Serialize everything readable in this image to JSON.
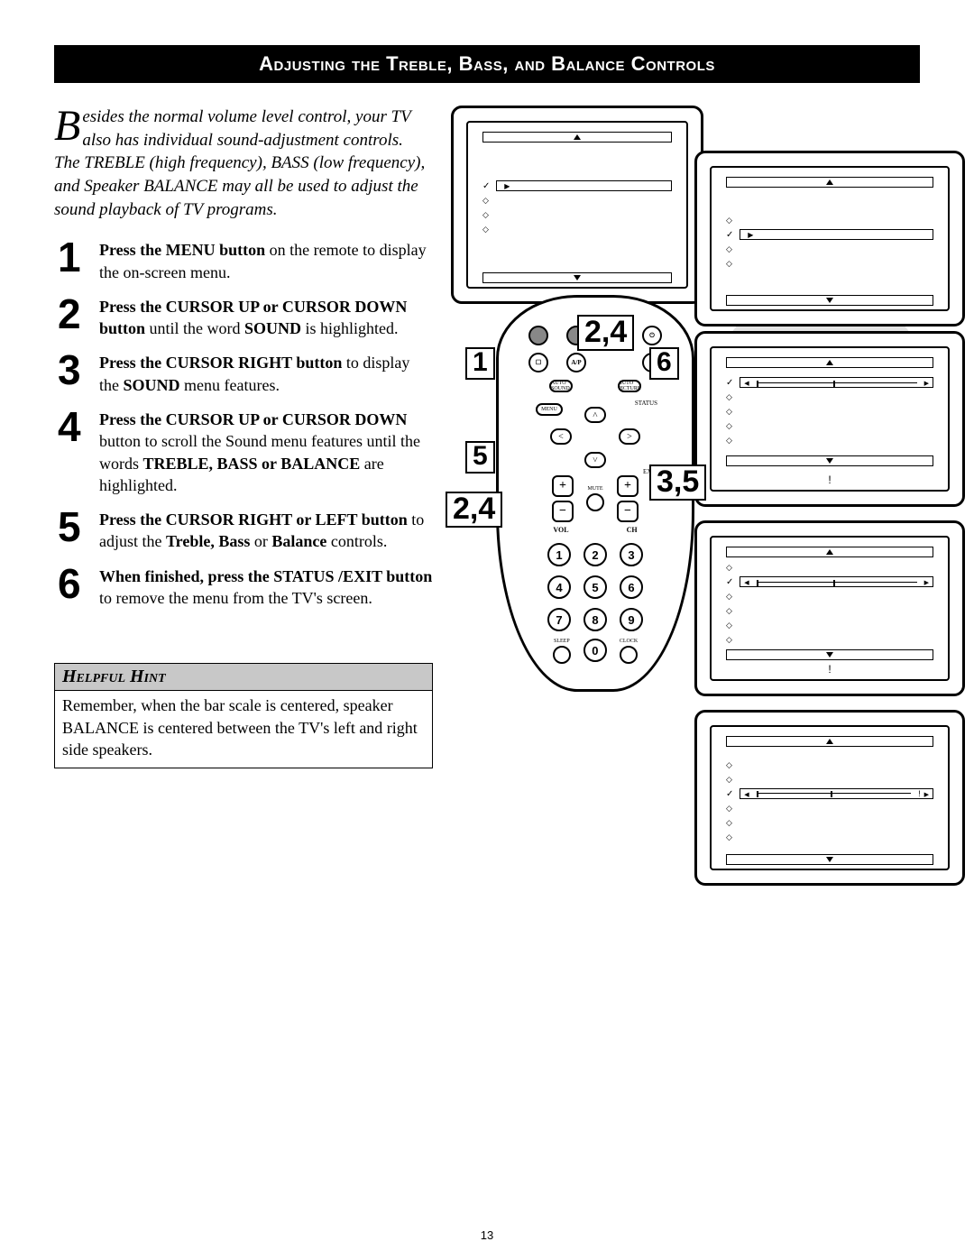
{
  "page_number": "13",
  "title": "Adjusting the Treble, Bass, and Balance Controls",
  "intro_dropcap": "B",
  "intro_text": "esides the normal volume level control, your TV also has individual sound-adjustment controls. The TREBLE (high frequency), BASS (low frequency), and Speaker BALANCE may all be used to adjust the sound playback of TV programs.",
  "steps": [
    {
      "n": "1",
      "html": "<b>Press the MENU button</b> on the remote to display the on-screen menu."
    },
    {
      "n": "2",
      "html": "<b>Press the CURSOR UP or CURSOR DOWN button</b> until the word <b>SOUND</b> is highlighted."
    },
    {
      "n": "3",
      "html": "<b>Press the CURSOR RIGHT button</b> to display the <b>SOUND</b> menu features."
    },
    {
      "n": "4",
      "html": "<b>Press the CURSOR UP or  CURSOR DOWN</b> button to scroll the Sound menu features until the words <b>TREBLE, BASS or BALANCE</b> are highlighted."
    },
    {
      "n": "5",
      "html": "<b>Press the CURSOR RIGHT or LEFT button</b> to adjust the <b>Treble, Bass</b> or <b>Balance</b> controls."
    },
    {
      "n": "6",
      "html": "<b>When finished, press the STATUS /EXIT button</b> to remove the menu from the TV's screen."
    }
  ],
  "hint_title": "Helpful Hint",
  "hint_body": "Remember, when the bar scale is centered, speaker BALANCE is centered between the TV's left and right side speakers.",
  "remote": {
    "power": "POWER",
    "menu": "MENU",
    "mute": "MUTE",
    "auto_sound": "AUTO SOUND",
    "auto_picture": "AUTO PICTURE",
    "status": "STATUS",
    "exit": "EXIT",
    "vol": "VOL",
    "ch": "CH",
    "sleep": "SLEEP",
    "clock": "CLOCK",
    "ap": "A/P"
  },
  "callouts": {
    "c1": "1",
    "c24a": "2,4",
    "c24b": "2,4",
    "c5": "5",
    "c6": "6",
    "c35": "3,5"
  },
  "colors": {
    "title_bg": "#000000",
    "title_fg": "#ffffff",
    "hint_bg": "#c8c8c8",
    "page_bg": "#ffffff"
  }
}
